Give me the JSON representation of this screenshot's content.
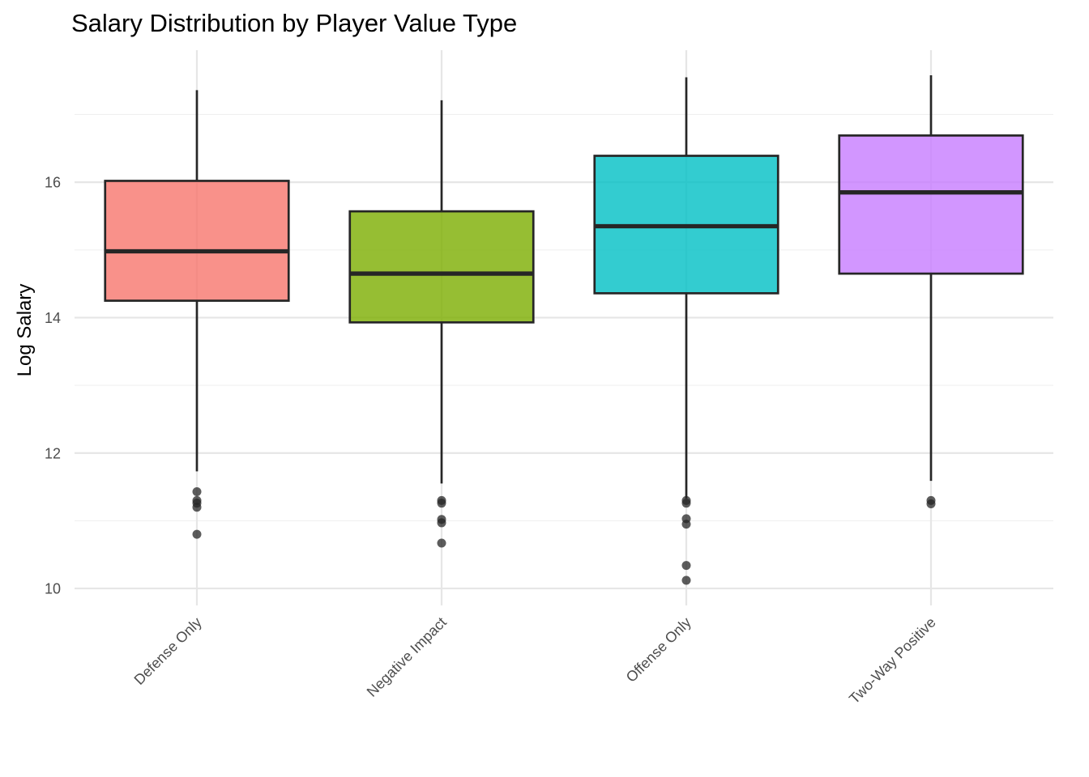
{
  "chart_data": {
    "type": "boxplot",
    "title": "Salary Distribution by Player Value Type",
    "xlabel": "",
    "ylabel": "Log Salary",
    "ylim": [
      9.75,
      17.95
    ],
    "y_ticks": [
      10,
      12,
      14,
      16
    ],
    "y_minor_ticks": [
      11,
      13,
      15,
      17
    ],
    "grid": true,
    "legend": "none",
    "categories": [
      "Defense Only",
      "Negative Impact",
      "Offense Only",
      "Two-Way Positive"
    ],
    "series": [
      {
        "category": "Defense Only",
        "color": "#F8766D",
        "q1": 14.25,
        "median": 14.98,
        "q3": 16.02,
        "whisker_low": 11.73,
        "whisker_high": 17.36,
        "outliers": [
          11.43,
          11.3,
          11.26,
          11.2,
          10.8
        ]
      },
      {
        "category": "Negative Impact",
        "color": "#7CAE00",
        "q1": 13.93,
        "median": 14.65,
        "q3": 15.57,
        "whisker_low": 11.55,
        "whisker_high": 17.21,
        "outliers": [
          11.3,
          11.26,
          11.02,
          10.97,
          10.67
        ]
      },
      {
        "category": "Offense Only",
        "color": "#00BFC4",
        "q1": 14.36,
        "median": 15.35,
        "q3": 16.39,
        "whisker_low": 11.33,
        "whisker_high": 17.55,
        "outliers": [
          11.3,
          11.26,
          11.03,
          10.95,
          10.34,
          10.12
        ]
      },
      {
        "category": "Two-Way Positive",
        "color": "#C77CFF",
        "q1": 14.65,
        "median": 15.85,
        "q3": 16.69,
        "whisker_low": 11.59,
        "whisker_high": 17.58,
        "outliers": [
          11.3,
          11.25
        ]
      }
    ]
  }
}
